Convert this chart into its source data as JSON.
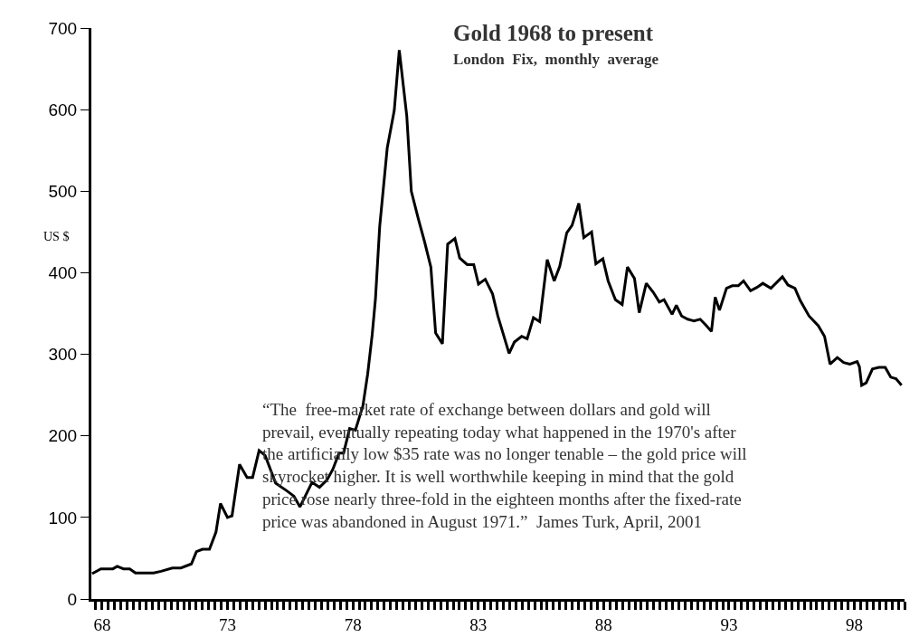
{
  "chart_data": {
    "type": "line",
    "title": "Gold 1968 to present",
    "subtitle": "London  Fix,  monthly  average",
    "ylabel": "US $",
    "annotations": [
      "“The  free-market rate of exchange between dollars and gold will\nprevail, eventually repeating today what happened in the 1970's after\nthe artificially low $35 rate was no longer tenable – the gold price will\nskyrocket higher. It is well worthwhile keeping in mind that the gold\nprice rose nearly three-fold in the eighteen months after the fixed-rate\nprice was abandoned in August 1971.”  James Turk, April, 2001"
    ],
    "x": [
      67.6,
      67.95,
      68.43,
      68.6,
      68.85,
      69.1,
      69.33,
      70.05,
      70.35,
      70.8,
      71.14,
      71.56,
      71.76,
      72.0,
      72.28,
      72.54,
      72.72,
      73.0,
      73.18,
      73.48,
      73.78,
      74.0,
      74.26,
      74.5,
      74.92,
      75.35,
      75.65,
      75.89,
      76.37,
      76.67,
      76.97,
      77.2,
      77.45,
      77.63,
      77.87,
      78.1,
      78.4,
      78.59,
      78.77,
      78.9,
      79.07,
      79.37,
      79.65,
      79.85,
      80.15,
      80.33,
      80.61,
      80.85,
      81.11,
      81.3,
      81.57,
      81.78,
      82.07,
      82.26,
      82.56,
      82.82,
      83.01,
      83.28,
      83.57,
      83.78,
      84.23,
      84.44,
      84.73,
      84.95,
      85.2,
      85.45,
      85.75,
      86.03,
      86.25,
      86.53,
      86.74,
      87.01,
      87.21,
      87.52,
      87.69,
      87.97,
      88.18,
      88.47,
      88.74,
      88.95,
      89.23,
      89.42,
      89.7,
      89.98,
      90.22,
      90.41,
      90.73,
      90.9,
      91.11,
      91.35,
      91.6,
      91.85,
      92.1,
      92.3,
      92.45,
      92.62,
      92.9,
      93.13,
      93.37,
      93.58,
      93.86,
      94.11,
      94.35,
      94.67,
      95.13,
      95.35,
      95.63,
      95.84,
      96.19,
      96.56,
      96.81,
      97.03,
      97.32,
      97.57,
      97.82,
      98.11,
      98.2,
      98.29,
      98.47,
      98.72,
      98.98,
      99.23,
      99.45,
      99.66,
      99.88
    ],
    "series": [
      {
        "color": "#000000",
        "values": [
          31,
          37,
          37,
          40,
          37,
          37,
          32,
          32,
          34,
          38,
          38,
          43,
          58,
          61,
          61,
          82,
          117,
          100,
          102,
          165,
          149,
          149,
          182,
          176,
          142,
          133,
          126,
          113,
          143,
          137,
          146,
          159,
          179,
          179,
          209,
          207,
          237,
          276,
          324,
          368,
          457,
          553,
          599,
          673,
          592,
          500,
          466,
          439,
          407,
          326,
          313,
          435,
          442,
          418,
          410,
          410,
          386,
          392,
          374,
          347,
          301,
          315,
          322,
          319,
          345,
          340,
          416,
          390,
          408,
          449,
          458,
          485,
          443,
          450,
          411,
          417,
          390,
          367,
          361,
          407,
          393,
          351,
          387,
          376,
          364,
          367,
          349,
          360,
          347,
          343,
          341,
          343,
          335,
          328,
          370,
          354,
          381,
          384,
          384,
          390,
          378,
          382,
          387,
          381,
          395,
          385,
          381,
          366,
          347,
          335,
          322,
          288,
          296,
          290,
          288,
          291,
          285,
          262,
          265,
          282,
          284,
          284,
          272,
          270,
          262
        ]
      }
    ],
    "xlim": [
      67.57,
      100.0
    ],
    "xticks": [
      {
        "value": 68,
        "label": "68"
      },
      {
        "value": 73,
        "label": "73"
      },
      {
        "value": 78,
        "label": "78"
      },
      {
        "value": 83,
        "label": "83"
      },
      {
        "value": 88,
        "label": "88"
      },
      {
        "value": 93,
        "label": "93"
      },
      {
        "value": 98,
        "label": "98"
      }
    ],
    "ylim": [
      0,
      700
    ],
    "yticks": [
      0,
      100,
      200,
      300,
      400,
      500,
      600,
      700
    ],
    "grid": false,
    "marker": "none",
    "line_style": "solid"
  }
}
